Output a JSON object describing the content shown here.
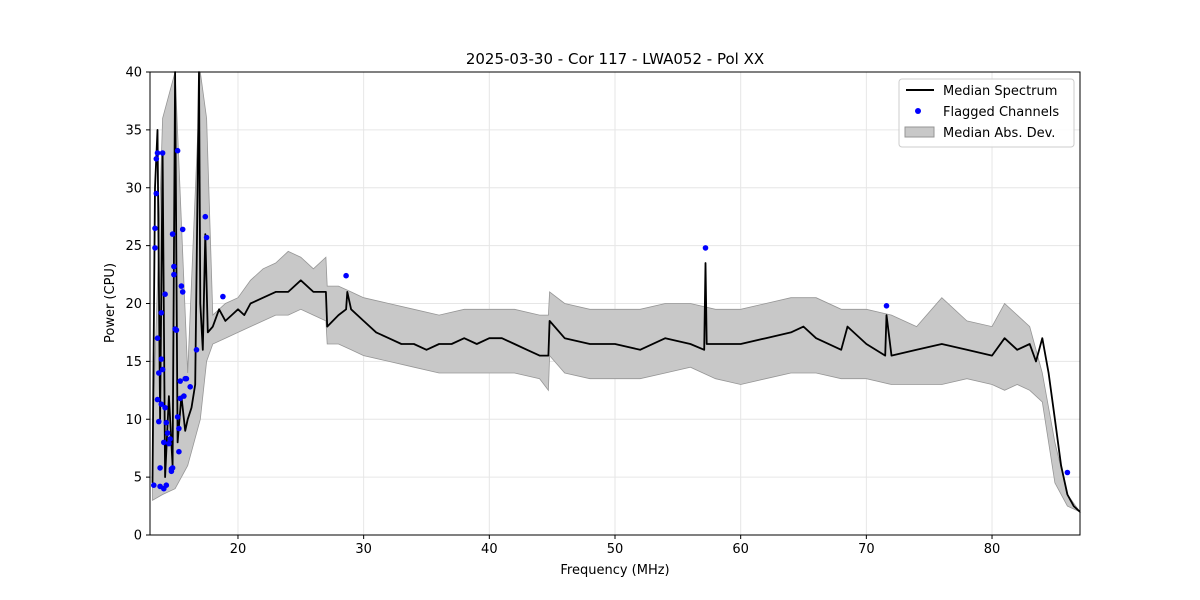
{
  "chart_data": {
    "type": "line",
    "title": "2025-03-30 - Cor 117 - LWA052 - Pol XX",
    "xlabel": "Frequency (MHz)",
    "ylabel": "Power (CPU)",
    "xlim": [
      13,
      87
    ],
    "ylim": [
      0,
      40
    ],
    "xticks": [
      20,
      30,
      40,
      50,
      60,
      70,
      80
    ],
    "yticks": [
      0,
      5,
      10,
      15,
      20,
      25,
      30,
      35,
      40
    ],
    "grid": true,
    "legend_position": "upper right",
    "legend": [
      "Median Spectrum",
      "Flagged Channels",
      "Median Abs. Dev."
    ],
    "colors": {
      "line": "#000000",
      "flagged": "#0000ff",
      "band": "#c8c8c8",
      "band_edge": "#969696"
    },
    "series": [
      {
        "name": "Median Spectrum",
        "x": [
          13.2,
          13.4,
          13.6,
          13.8,
          14.0,
          14.2,
          14.5,
          14.8,
          15.0,
          15.2,
          15.5,
          15.8,
          16.0,
          16.3,
          16.6,
          16.9,
          17.0,
          17.2,
          17.4,
          17.6,
          18.0,
          18.5,
          19.0,
          19.5,
          20.0,
          20.5,
          21.0,
          22.0,
          23.0,
          24.0,
          25.0,
          26.0,
          27.0,
          27.1,
          28.0,
          28.6,
          28.7,
          29.0,
          30.0,
          31.0,
          32.0,
          33.0,
          34.0,
          35.0,
          36.0,
          37.0,
          38.0,
          39.0,
          40.0,
          41.0,
          42.0,
          43.0,
          44.0,
          44.7,
          44.8,
          46.0,
          48.0,
          50.0,
          52.0,
          54.0,
          56.0,
          57.1,
          57.2,
          57.3,
          58.0,
          60.0,
          62.0,
          64.0,
          65.0,
          66.0,
          68.0,
          68.5,
          70.0,
          71.5,
          71.6,
          72.0,
          74.0,
          76.0,
          78.0,
          80.0,
          81.0,
          82.0,
          83.0,
          83.5,
          84.0,
          84.5,
          85.0,
          85.5,
          86.0,
          86.5,
          87.0
        ],
        "values": [
          4.5,
          30.0,
          35.0,
          10.0,
          33.0,
          5.0,
          12.0,
          6.0,
          40.0,
          8.0,
          12.0,
          9.0,
          10.0,
          11.0,
          13.0,
          40.0,
          20.0,
          16.0,
          26.0,
          17.5,
          18.0,
          19.5,
          18.5,
          19.0,
          19.5,
          19.0,
          20.0,
          20.5,
          21.0,
          21.0,
          22.0,
          21.0,
          21.0,
          18.0,
          19.0,
          19.5,
          21.0,
          19.5,
          18.5,
          17.5,
          17.0,
          16.5,
          16.5,
          16.0,
          16.5,
          16.5,
          17.0,
          16.5,
          17.0,
          17.0,
          16.5,
          16.0,
          15.5,
          15.5,
          18.5,
          17.0,
          16.5,
          16.5,
          16.0,
          17.0,
          16.5,
          16.0,
          23.5,
          16.5,
          16.5,
          16.5,
          17.0,
          17.5,
          18.0,
          17.0,
          16.0,
          18.0,
          16.5,
          15.5,
          19.0,
          15.5,
          16.0,
          16.5,
          16.0,
          15.5,
          17.0,
          16.0,
          16.5,
          15.0,
          17.0,
          14.0,
          10.0,
          6.0,
          3.5,
          2.5,
          2.0
        ]
      },
      {
        "name": "Median Abs. Dev.",
        "x": [
          13.2,
          14.0,
          15.0,
          16.0,
          17.0,
          17.5,
          18.0,
          19.0,
          20.0,
          21.0,
          22.0,
          23.0,
          24.0,
          25.0,
          26.0,
          27.0,
          27.1,
          28.0,
          29.0,
          30.0,
          32.0,
          34.0,
          36.0,
          38.0,
          40.0,
          42.0,
          44.0,
          44.7,
          44.8,
          46.0,
          48.0,
          50.0,
          52.0,
          54.0,
          56.0,
          58.0,
          60.0,
          62.0,
          64.0,
          66.0,
          68.0,
          70.0,
          72.0,
          74.0,
          76.0,
          78.0,
          80.0,
          81.0,
          82.0,
          83.0,
          84.0,
          85.0,
          86.0,
          87.0
        ],
        "upper": [
          8.0,
          36.0,
          40.0,
          14.0,
          40.0,
          36.0,
          19.0,
          20.0,
          20.5,
          22.0,
          23.0,
          23.5,
          24.5,
          24.0,
          23.0,
          24.0,
          21.5,
          21.5,
          21.0,
          20.5,
          20.0,
          19.5,
          19.0,
          19.5,
          19.5,
          19.5,
          19.0,
          19.0,
          21.0,
          20.0,
          19.5,
          19.5,
          19.5,
          20.0,
          20.0,
          19.5,
          19.5,
          20.0,
          20.5,
          20.5,
          19.5,
          19.5,
          19.0,
          18.0,
          20.5,
          18.5,
          18.0,
          20.0,
          19.0,
          18.0,
          14.0,
          8.0,
          3.5,
          2.0
        ],
        "lower": [
          3.0,
          3.5,
          4.0,
          6.0,
          10.0,
          15.0,
          16.5,
          17.0,
          17.5,
          18.0,
          18.5,
          19.0,
          19.0,
          19.5,
          19.0,
          18.5,
          16.5,
          16.5,
          16.0,
          15.5,
          15.0,
          14.5,
          14.0,
          14.0,
          14.0,
          14.0,
          13.5,
          12.5,
          15.5,
          14.0,
          13.5,
          13.5,
          13.5,
          14.0,
          14.5,
          13.5,
          13.0,
          13.5,
          14.0,
          14.0,
          13.5,
          13.5,
          13.0,
          13.0,
          13.0,
          13.5,
          13.0,
          12.5,
          13.0,
          12.5,
          11.5,
          4.5,
          2.5,
          2.0
        ]
      },
      {
        "name": "Flagged Channels",
        "points": [
          [
            13.3,
            4.3
          ],
          [
            13.4,
            24.8
          ],
          [
            13.4,
            26.5
          ],
          [
            13.5,
            29.5
          ],
          [
            13.5,
            32.5
          ],
          [
            13.6,
            33.0
          ],
          [
            13.6,
            17.0
          ],
          [
            13.6,
            11.7
          ],
          [
            13.7,
            9.8
          ],
          [
            13.7,
            14.0
          ],
          [
            13.8,
            4.2
          ],
          [
            13.8,
            5.8
          ],
          [
            13.9,
            19.2
          ],
          [
            13.9,
            15.2
          ],
          [
            13.9,
            11.3
          ],
          [
            14.0,
            33.0
          ],
          [
            14.0,
            14.3
          ],
          [
            14.1,
            8.0
          ],
          [
            14.1,
            4.0
          ],
          [
            14.2,
            20.8
          ],
          [
            14.2,
            11.0
          ],
          [
            14.3,
            9.7
          ],
          [
            14.3,
            4.3
          ],
          [
            14.4,
            8.8
          ],
          [
            14.5,
            7.9
          ],
          [
            14.6,
            8.3
          ],
          [
            14.7,
            5.5
          ],
          [
            14.7,
            5.7
          ],
          [
            14.8,
            5.8
          ],
          [
            14.8,
            26.0
          ],
          [
            14.9,
            23.2
          ],
          [
            14.9,
            22.5
          ],
          [
            15.0,
            17.8
          ],
          [
            15.1,
            17.7
          ],
          [
            15.2,
            33.2
          ],
          [
            15.2,
            10.2
          ],
          [
            15.3,
            7.2
          ],
          [
            15.3,
            9.2
          ],
          [
            15.4,
            13.3
          ],
          [
            15.4,
            11.8
          ],
          [
            15.5,
            21.5
          ],
          [
            15.6,
            21.0
          ],
          [
            15.6,
            26.4
          ],
          [
            15.7,
            12.0
          ],
          [
            15.8,
            13.5
          ],
          [
            15.9,
            13.5
          ],
          [
            16.2,
            12.8
          ],
          [
            16.7,
            16.0
          ],
          [
            17.4,
            27.5
          ],
          [
            17.5,
            25.7
          ],
          [
            18.8,
            20.6
          ],
          [
            28.6,
            22.4
          ],
          [
            57.2,
            24.8
          ],
          [
            71.6,
            19.8
          ],
          [
            86.0,
            5.4
          ]
        ]
      }
    ]
  }
}
